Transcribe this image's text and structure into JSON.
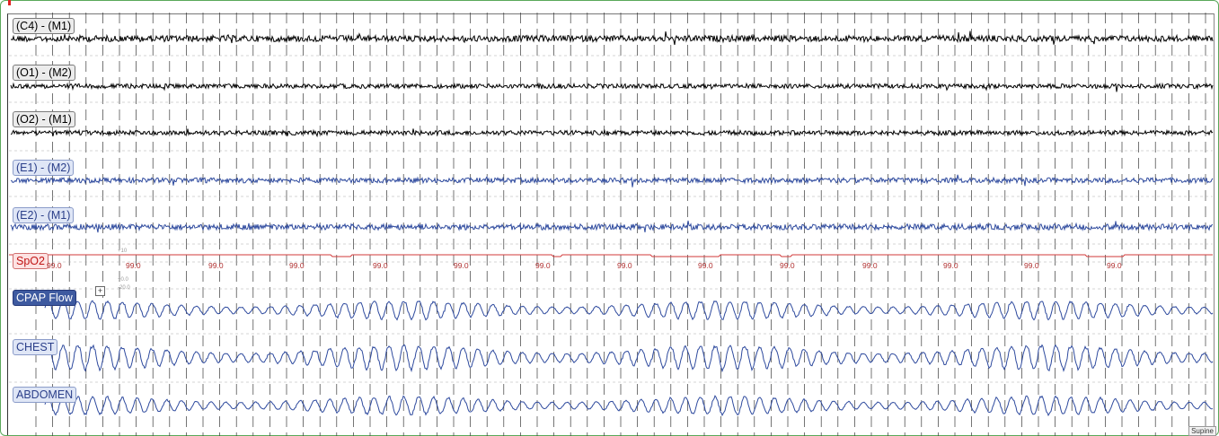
{
  "channels": {
    "c4_m1": "(C4) - (M1)",
    "o1_m2": "(O1) - (M2)",
    "o2_m1": "(O2) - (M1)",
    "e1_m2": "(E1) - (M2)",
    "e2_m1": "(E2) - (M1)",
    "spo2": "SpO2",
    "cpap_flow": "CPAP Flow",
    "chest": "CHEST",
    "abdomen": "ABDOMEN"
  },
  "cpap_expand_glyph": "+",
  "spo2_scale": {
    "top": "+10",
    "mid": "+0.0",
    "bottom": "-20.0"
  },
  "spo2_readings": [
    "99.0",
    "99.0",
    "99.0",
    "99.0",
    "99.0",
    "99.0",
    "99.0",
    "99.0",
    "99.0",
    "99.0",
    "99.0",
    "99.0",
    "99.0",
    "99.0"
  ],
  "position_tab": "Supine",
  "colors": {
    "eeg": "#000000",
    "eog": "#2e4a9e",
    "spo2": "#d23a3a",
    "resp": "#2e4a9e",
    "frame": "#5aa85a"
  }
}
